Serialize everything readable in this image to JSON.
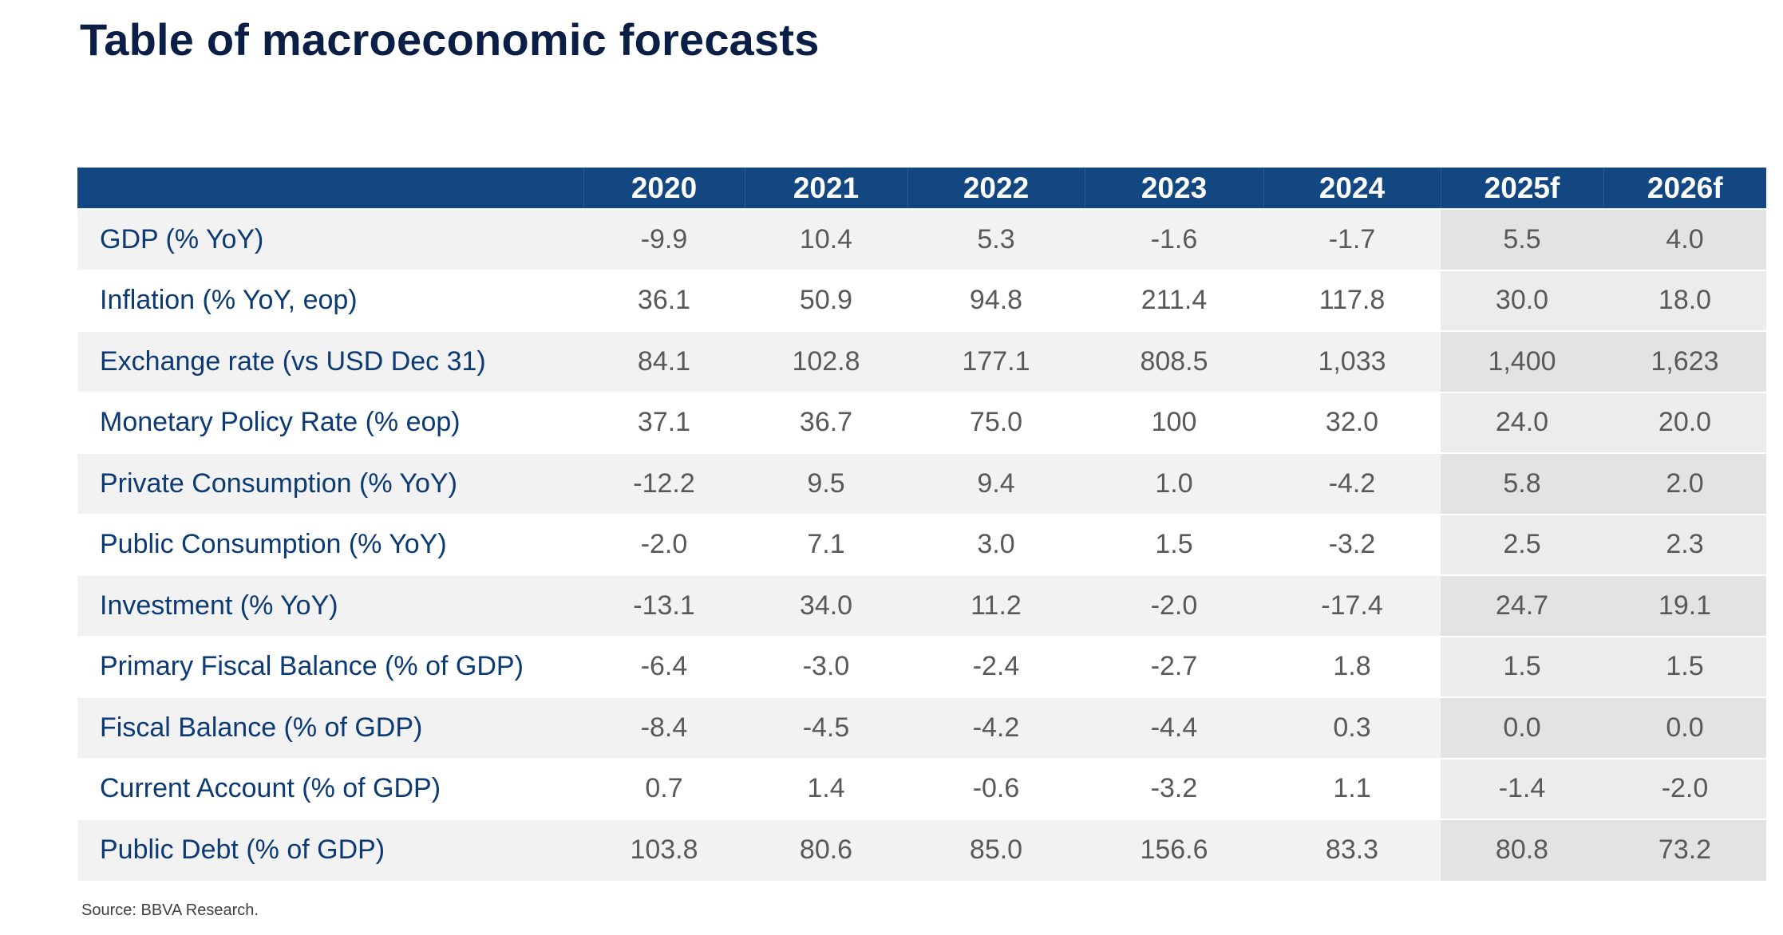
{
  "title": "Table of macroeconomic forecasts",
  "table": {
    "header": [
      "",
      "2020",
      "2021",
      "2022",
      "2023",
      "2024",
      "2025f",
      "2026f"
    ],
    "rows": [
      {
        "label": "GDP (% YoY)",
        "values": [
          "-9.9",
          "10.4",
          "5.3",
          "-1.6",
          "-1.7",
          "5.5",
          "4.0"
        ]
      },
      {
        "label": "Inflation (% YoY, eop)",
        "values": [
          "36.1",
          "50.9",
          "94.8",
          "211.4",
          "117.8",
          "30.0",
          "18.0"
        ]
      },
      {
        "label": "Exchange rate (vs USD Dec 31)",
        "values": [
          "84.1",
          "102.8",
          "177.1",
          "808.5",
          "1,033",
          "1,400",
          "1,623"
        ]
      },
      {
        "label": "Monetary Policy Rate (% eop)",
        "values": [
          "37.1",
          "36.7",
          "75.0",
          "100",
          "32.0",
          "24.0",
          "20.0"
        ]
      },
      {
        "label": "Private Consumption (% YoY)",
        "values": [
          "-12.2",
          "9.5",
          "9.4",
          "1.0",
          "-4.2",
          "5.8",
          "2.0"
        ]
      },
      {
        "label": "Public Consumption (% YoY)",
        "values": [
          "-2.0",
          "7.1",
          "3.0",
          "1.5",
          "-3.2",
          "2.5",
          "2.3"
        ]
      },
      {
        "label": "Investment (% YoY)",
        "values": [
          "-13.1",
          "34.0",
          "11.2",
          "-2.0",
          "-17.4",
          "24.7",
          "19.1"
        ]
      },
      {
        "label": "Primary Fiscal Balance (% of GDP)",
        "values": [
          "-6.4",
          "-3.0",
          "-2.4",
          "-2.7",
          "1.8",
          "1.5",
          "1.5"
        ]
      },
      {
        "label": "Fiscal Balance (% of GDP)",
        "values": [
          "-8.4",
          "-4.5",
          "-4.2",
          "-4.4",
          "0.3",
          "0.0",
          "0.0"
        ]
      },
      {
        "label": "Current Account (% of GDP)",
        "values": [
          "0.7",
          "1.4",
          "-0.6",
          "-3.2",
          "1.1",
          "-1.4",
          "-2.0"
        ]
      },
      {
        "label": "Public Debt (% of GDP)",
        "values": [
          "103.8",
          "80.6",
          "85.0",
          "156.6",
          "83.3",
          "80.8",
          "73.2"
        ]
      }
    ]
  },
  "source": "Source: BBVA Research.",
  "colors": {
    "title": "#0b1e45",
    "header_bg": "#124781",
    "header_text": "#ffffff",
    "label_text": "#0b3a75",
    "value_text": "#595959",
    "band_bg": "#f2f2f2",
    "forecast_bg": "#e3e3e3"
  }
}
